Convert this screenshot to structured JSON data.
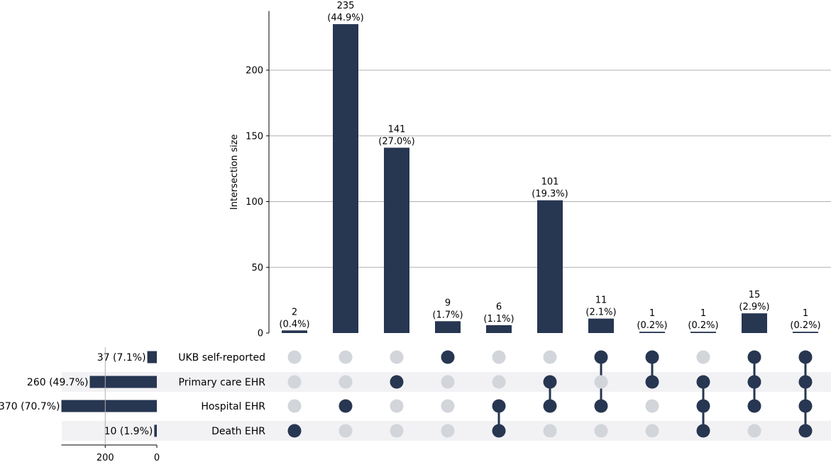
{
  "chart_data": {
    "type": "bar",
    "title": "",
    "ylabel": "Intersection size",
    "ylim": [
      0,
      245
    ],
    "yticks": [
      0,
      50,
      100,
      150,
      200
    ],
    "grid": true,
    "bar_color": "#273651",
    "dot_inactive_color": "#d2d5da",
    "stripe_color": "#f2f2f5",
    "sets": [
      {
        "name": "UKB self-reported",
        "size": 37,
        "label": "37 (7.1%)"
      },
      {
        "name": "Primary care EHR",
        "size": 260,
        "label": "260 (49.7%)"
      },
      {
        "name": "Hospital EHR",
        "size": 370,
        "label": "370 (70.7%)"
      },
      {
        "name": "Death EHR",
        "size": 10,
        "label": "10 (1.9%)"
      }
    ],
    "set_size_axis": {
      "ticks": [
        200,
        0
      ]
    },
    "intersections": [
      {
        "value": 2,
        "count_label": "2",
        "pct_label": "(0.4%)",
        "members": [
          3
        ]
      },
      {
        "value": 235,
        "count_label": "235",
        "pct_label": "(44.9%)",
        "members": [
          2
        ]
      },
      {
        "value": 141,
        "count_label": "141",
        "pct_label": "(27.0%)",
        "members": [
          1
        ]
      },
      {
        "value": 9,
        "count_label": "9",
        "pct_label": "(1.7%)",
        "members": [
          0
        ]
      },
      {
        "value": 6,
        "count_label": "6",
        "pct_label": "(1.1%)",
        "members": [
          2,
          3
        ]
      },
      {
        "value": 101,
        "count_label": "101",
        "pct_label": "(19.3%)",
        "members": [
          1,
          2
        ]
      },
      {
        "value": 11,
        "count_label": "11",
        "pct_label": "(2.1%)",
        "members": [
          0,
          2
        ]
      },
      {
        "value": 1,
        "count_label": "1",
        "pct_label": "(0.2%)",
        "members": [
          0,
          1
        ]
      },
      {
        "value": 1,
        "count_label": "1",
        "pct_label": "(0.2%)",
        "members": [
          1,
          2,
          3
        ]
      },
      {
        "value": 15,
        "count_label": "15",
        "pct_label": "(2.9%)",
        "members": [
          0,
          1,
          2
        ]
      },
      {
        "value": 1,
        "count_label": "1",
        "pct_label": "(0.2%)",
        "members": [
          0,
          1,
          2,
          3
        ]
      }
    ]
  }
}
